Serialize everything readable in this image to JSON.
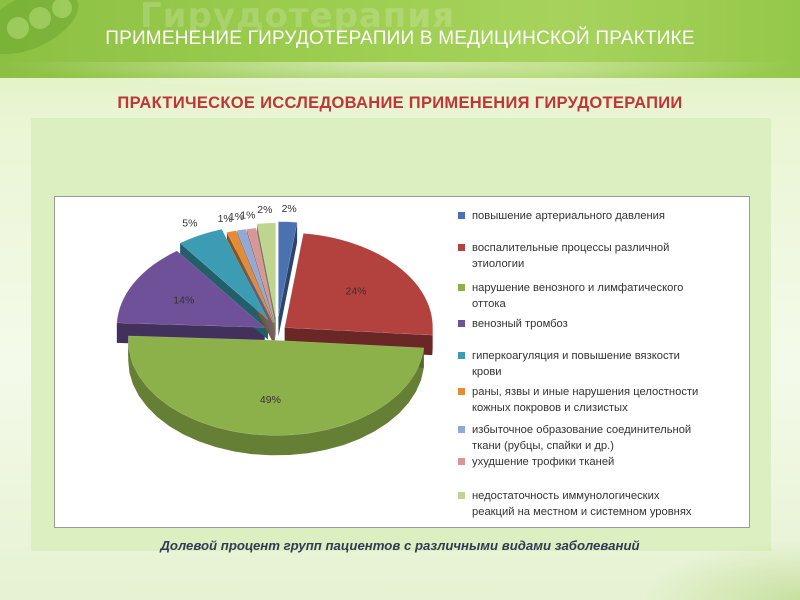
{
  "header": {
    "watermark": "Гирудотерапия",
    "title": "ПРИМЕНЕНИЕ ГИРУДОТЕРАПИИ В МЕДИЦИНСКОЙ ПРАКТИКЕ"
  },
  "subtitle": "ПРАКТИЧЕСКОЕ ИССЛЕДОВАНИЕ ПРИМЕНЕНИЯ ГИРУДОТЕРАПИИ",
  "caption": "Долевой процент групп пациентов с различными видами заболеваний",
  "colors": {
    "header_band": "#94c84a",
    "subtitle": "#c0343a",
    "panel": "#dcefc0"
  },
  "chart_data": {
    "type": "pie",
    "style": "3d-exploded",
    "legend_position": "right",
    "categories": [
      "повышение артериального давления",
      "воспалительные процессы различной этиологии",
      "нарушение венозного и лимфатического оттока",
      "венозный тромбоз",
      "гиперкоагуляция и повышение вязкости крови",
      "раны, язвы и иные нарушения целостности кожных покровов и слизистых",
      "избыточное образование соединительной ткани (рубцы, спайки и др.)",
      "ухудшение трофики тканей",
      "недостаточность иммунологических реакций на местном и системном уровнях"
    ],
    "legend_lines": [
      [
        "повышение артериального давления"
      ],
      [
        "воспалительные процессы различной",
        "этиологии"
      ],
      [
        "нарушение венозного и лимфатического",
        "оттока"
      ],
      [
        "венозный тромбоз"
      ],
      [
        "гиперкоагуляция и повышение вязкости",
        "крови"
      ],
      [
        "раны, язвы и иные нарушения целостности",
        "кожных покровов и слизистых"
      ],
      [
        "избыточное образование соединительной",
        "ткани (рубцы, спайки и др.)"
      ],
      [
        "ухудшение трофики тканей"
      ],
      [
        "недостаточность иммунологических",
        "реакций на местном и системном уровнях"
      ]
    ],
    "values": [
      2,
      24,
      49,
      14,
      5,
      1,
      1,
      1,
      2
    ],
    "labels": [
      "2%",
      "24%",
      "49%",
      "14%",
      "5%",
      "1%",
      "1%",
      "1%",
      "2%"
    ],
    "colors": [
      "#4a72b0",
      "#b3413e",
      "#8cb04a",
      "#6e5199",
      "#3b9cb3",
      "#e58a35",
      "#93a9d4",
      "#d99694",
      "#bed48f"
    ]
  }
}
